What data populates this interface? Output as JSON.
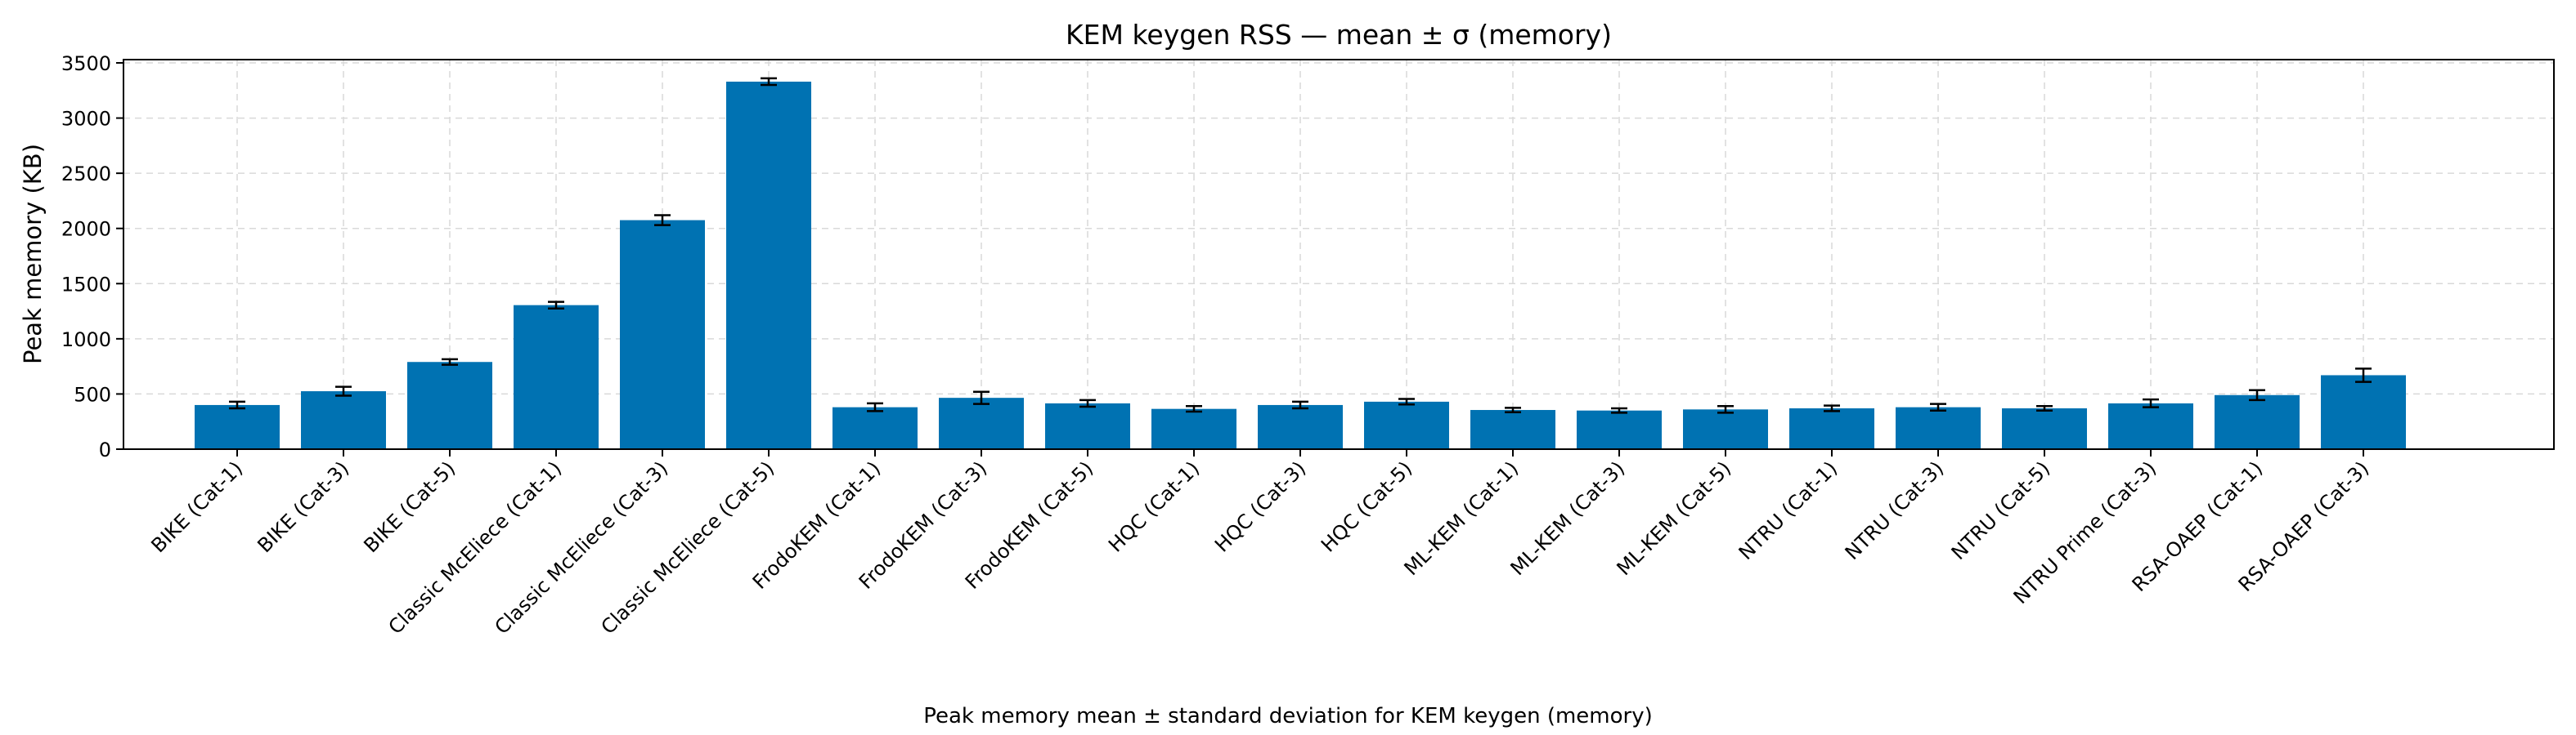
{
  "chart_data": {
    "type": "bar",
    "title": "KEM keygen RSS — mean ± σ (memory)",
    "xlabel": "",
    "ylabel": "Peak memory (KB)",
    "ylim": [
      0,
      3500
    ],
    "yticks": [
      0,
      500,
      1000,
      1500,
      2000,
      2500,
      3000,
      3500
    ],
    "grid": true,
    "bar_color": "#0072b2",
    "categories": [
      "BIKE (Cat-1)",
      "BIKE (Cat-3)",
      "BIKE (Cat-5)",
      "Classic McEliece (Cat-1)",
      "Classic McEliece (Cat-3)",
      "Classic McEliece (Cat-5)",
      "FrodoKEM (Cat-1)",
      "FrodoKEM (Cat-3)",
      "FrodoKEM (Cat-5)",
      "HQC (Cat-1)",
      "HQC (Cat-3)",
      "HQC (Cat-5)",
      "ML-KEM (Cat-1)",
      "ML-KEM (Cat-3)",
      "ML-KEM (Cat-5)",
      "NTRU (Cat-1)",
      "NTRU (Cat-3)",
      "NTRU (Cat-5)",
      "NTRU Prime (Cat-3)",
      "RSA-OAEP (Cat-1)",
      "RSA-OAEP (Cat-3)"
    ],
    "values": [
      400,
      525,
      790,
      1305,
      2075,
      3330,
      380,
      465,
      415,
      365,
      400,
      430,
      355,
      350,
      360,
      370,
      380,
      370,
      415,
      490,
      670
    ],
    "errors": [
      30,
      40,
      25,
      30,
      45,
      30,
      35,
      55,
      30,
      25,
      30,
      25,
      20,
      20,
      30,
      25,
      30,
      20,
      35,
      45,
      60
    ]
  },
  "caption": "Peak memory mean ± standard deviation for KEM keygen (memory)"
}
